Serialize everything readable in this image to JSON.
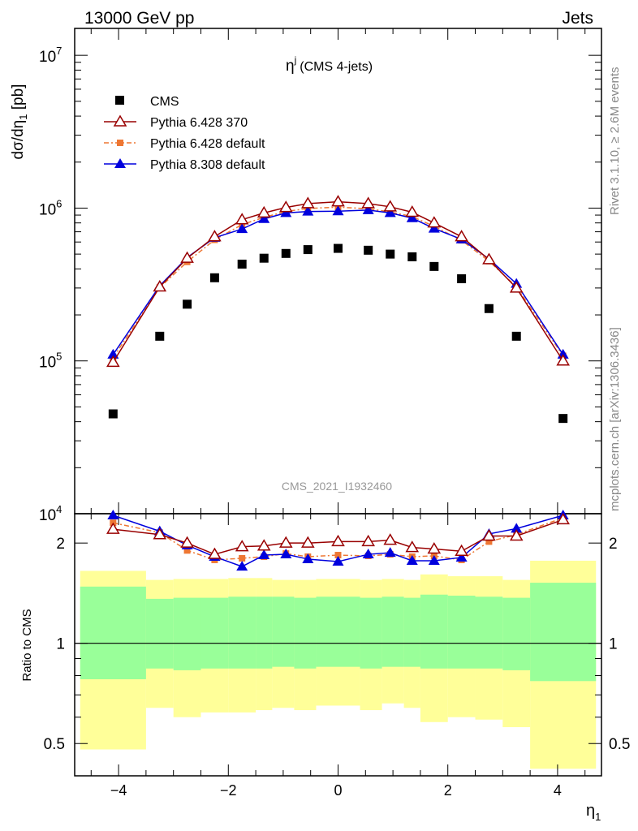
{
  "header": {
    "left": "13000 GeV pp",
    "right": "Jets"
  },
  "side_labels": {
    "top": "Rivet 3.1.10, ≥ 2.6M events",
    "bottom": "mcplots.cern.ch [arXiv:1306.3436]"
  },
  "chart_data": {
    "type": "scatter",
    "title_main": "η",
    "title_sup": "j",
    "title_rest": "(CMS 4-jets)",
    "watermark": "CMS_2021_I1932460",
    "xlabel": "η",
    "xlabel_sub": "1",
    "ylabel_top": "dσ/dη",
    "ylabel_top_sub": "1",
    "ylabel_top_unit": " [pb]",
    "ylabel_ratio": "Ratio to CMS",
    "xlim": [
      -4.8,
      4.8
    ],
    "ylim_top": [
      10000,
      15000000
    ],
    "ylim_ratio": [
      0.4,
      2.45
    ],
    "y_scale_top": "log",
    "y_scale_ratio": "log",
    "x_ticks": [
      -4,
      -2,
      0,
      2,
      4
    ],
    "x_tick_labels": [
      "−4",
      "−2",
      "0",
      "2",
      "4"
    ],
    "y_ticks_top": [
      {
        "base": "10",
        "exp": "4"
      },
      {
        "base": "10",
        "exp": "5"
      },
      {
        "base": "10",
        "exp": "6"
      },
      {
        "base": "10",
        "exp": "7"
      }
    ],
    "y_ticks_ratio": [
      {
        "value": 0.5,
        "label": "0.5"
      },
      {
        "value": 1,
        "label": "1"
      },
      {
        "value": 2,
        "label": "2"
      }
    ],
    "x": [
      -4.1,
      -3.25,
      -2.75,
      -2.25,
      -1.75,
      -1.35,
      -0.95,
      -0.55,
      0.0,
      0.55,
      0.95,
      1.35,
      1.75,
      2.25,
      2.75,
      3.25,
      4.1
    ],
    "bin_edges": [
      -4.7,
      -3.5,
      -3.0,
      -2.5,
      -2.0,
      -1.5,
      -1.2,
      -0.8,
      -0.4,
      0.4,
      0.8,
      1.2,
      1.5,
      2.0,
      2.5,
      3.0,
      3.5,
      4.7
    ],
    "legend": {
      "placement": "top-left"
    },
    "series": [
      {
        "name": "CMS",
        "marker": "square",
        "color": "#000000",
        "values": [
          45000,
          145000,
          235000,
          350000,
          430000,
          470000,
          505000,
          535000,
          545000,
          530000,
          500000,
          480000,
          415000,
          345000,
          220000,
          145000,
          42000
        ]
      },
      {
        "name": "Pythia 6.428 370",
        "marker": "triangle-open",
        "color": "#990000",
        "values": [
          98000,
          305000,
          470000,
          650000,
          840000,
          930000,
          1010000,
          1070000,
          1100000,
          1070000,
          1020000,
          940000,
          800000,
          650000,
          460000,
          300000,
          100000
        ]
      },
      {
        "name": "Pythia 6.428 default",
        "marker": "square-small",
        "color": "#ee7733",
        "dashed": true,
        "values": [
          105000,
          302000,
          445000,
          620000,
          780000,
          870000,
          950000,
          995000,
          1015000,
          990000,
          945000,
          880000,
          760000,
          615000,
          450000,
          305000,
          108000
        ]
      },
      {
        "name": "Pythia 8.308 default",
        "marker": "triangle",
        "color": "#0000dd",
        "values": [
          110000,
          310000,
          475000,
          640000,
          730000,
          850000,
          930000,
          950000,
          955000,
          970000,
          930000,
          860000,
          735000,
          625000,
          465000,
          320000,
          110000
        ]
      }
    ],
    "ratio_series": [
      {
        "name": "Pythia 6.428 370",
        "values": [
          2.2,
          2.12,
          2.0,
          1.85,
          1.95,
          1.96,
          2.0,
          2.0,
          2.02,
          2.02,
          2.04,
          1.94,
          1.92,
          1.89,
          2.1,
          2.1,
          2.35
        ]
      },
      {
        "name": "Pythia 6.428 default",
        "values": [
          2.3,
          2.15,
          1.9,
          1.78,
          1.8,
          1.82,
          1.86,
          1.82,
          1.84,
          1.83,
          1.85,
          1.82,
          1.83,
          1.78,
          2.02,
          2.12,
          2.38
        ]
      },
      {
        "name": "Pythia 8.308 default",
        "values": [
          2.45,
          2.17,
          1.97,
          1.82,
          1.7,
          1.84,
          1.85,
          1.79,
          1.76,
          1.85,
          1.87,
          1.77,
          1.77,
          1.81,
          2.13,
          2.21,
          2.6
        ]
      }
    ],
    "uncertainty_bands": {
      "stat_color": "#99ff99",
      "syst_color": "#ffff99",
      "inner": [
        {
          "lo": 0.78,
          "hi": 1.48
        },
        {
          "lo": 0.84,
          "hi": 1.36
        },
        {
          "lo": 0.83,
          "hi": 1.37
        },
        {
          "lo": 0.84,
          "hi": 1.37
        },
        {
          "lo": 0.84,
          "hi": 1.38
        },
        {
          "lo": 0.84,
          "hi": 1.38
        },
        {
          "lo": 0.85,
          "hi": 1.38
        },
        {
          "lo": 0.84,
          "hi": 1.37
        },
        {
          "lo": 0.85,
          "hi": 1.38
        },
        {
          "lo": 0.84,
          "hi": 1.37
        },
        {
          "lo": 0.85,
          "hi": 1.38
        },
        {
          "lo": 0.85,
          "hi": 1.37
        },
        {
          "lo": 0.84,
          "hi": 1.4
        },
        {
          "lo": 0.84,
          "hi": 1.39
        },
        {
          "lo": 0.84,
          "hi": 1.38
        },
        {
          "lo": 0.83,
          "hi": 1.37
        },
        {
          "lo": 0.77,
          "hi": 1.52
        }
      ],
      "outer": [
        {
          "lo": 0.48,
          "hi": 1.65
        },
        {
          "lo": 0.64,
          "hi": 1.55
        },
        {
          "lo": 0.6,
          "hi": 1.56
        },
        {
          "lo": 0.62,
          "hi": 1.56
        },
        {
          "lo": 0.62,
          "hi": 1.57
        },
        {
          "lo": 0.63,
          "hi": 1.57
        },
        {
          "lo": 0.64,
          "hi": 1.55
        },
        {
          "lo": 0.63,
          "hi": 1.55
        },
        {
          "lo": 0.65,
          "hi": 1.56
        },
        {
          "lo": 0.63,
          "hi": 1.55
        },
        {
          "lo": 0.66,
          "hi": 1.56
        },
        {
          "lo": 0.64,
          "hi": 1.55
        },
        {
          "lo": 0.58,
          "hi": 1.61
        },
        {
          "lo": 0.6,
          "hi": 1.59
        },
        {
          "lo": 0.59,
          "hi": 1.59
        },
        {
          "lo": 0.56,
          "hi": 1.55
        },
        {
          "lo": 0.42,
          "hi": 1.77
        }
      ]
    }
  }
}
